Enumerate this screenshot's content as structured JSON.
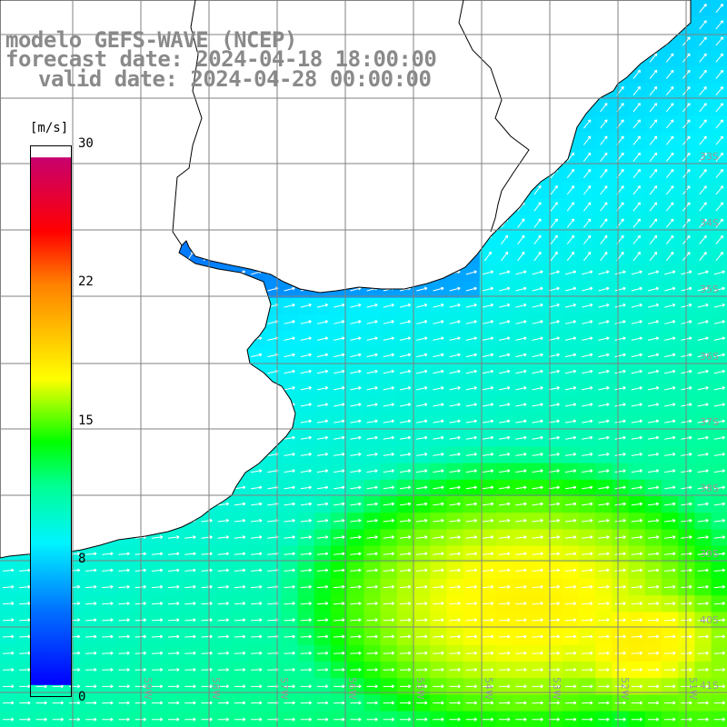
{
  "title": {
    "line1": "modelo GEFS-WAVE (NCEP)",
    "line2": "forecast date: 2024-04-18 18:00:00",
    "line3": "valid date: 2024-04-28 00:00:00"
  },
  "colorbar": {
    "unit": "[m/s]",
    "ticks": [
      "30",
      "22",
      "15",
      "8",
      "0"
    ],
    "tick_values": [
      30,
      22,
      15,
      8,
      0
    ],
    "range": [
      0,
      30
    ],
    "colors": [
      "#0000ff",
      "#00a0ff",
      "#00e8ff",
      "#00ff40",
      "#ffff00",
      "#ff8000",
      "#ff0000",
      "#c8006e"
    ]
  },
  "map": {
    "lat_labels": [
      "33S",
      "34S",
      "35S",
      "36S",
      "37S",
      "38S",
      "39S",
      "40S",
      "41S"
    ],
    "lon_labels": [
      "59W",
      "58W",
      "57W",
      "56W",
      "55W",
      "54W",
      "53W",
      "52W",
      "51W"
    ],
    "lat_range": [
      -41.4,
      -31.4
    ],
    "lon_range": [
      -60.4,
      -50.4
    ],
    "land_color": "#ffffff",
    "coast_color": "#000000",
    "grid_color": "#808080",
    "field": "wind speed with direction arrows"
  }
}
